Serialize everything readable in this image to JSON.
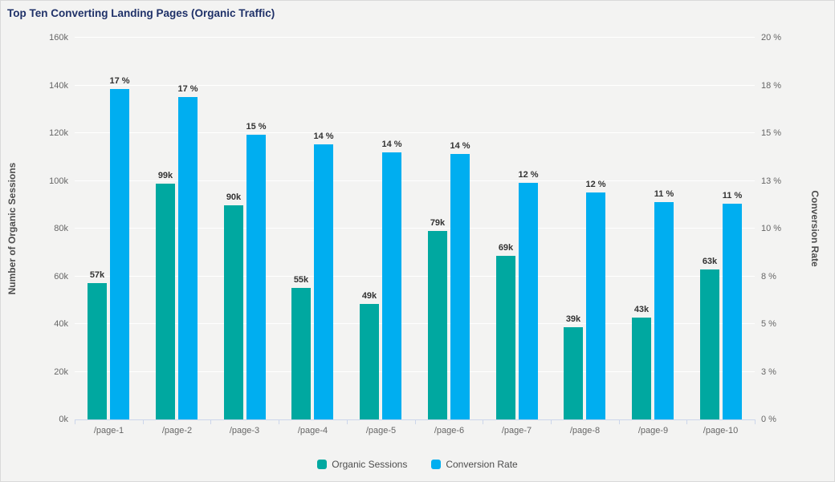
{
  "title": "Top Ten Converting Landing Pages (Organic Traffic)",
  "colors": {
    "teal": "#00a8a0",
    "blue": "#00aef0",
    "background": "#f3f3f2",
    "gridline": "#ffffff",
    "axis_line": "#ccd6eb",
    "tick_label": "#666666",
    "axis_title": "#4d4d4d",
    "data_label": "#333333",
    "title_text": "#1f3168"
  },
  "chart_data": {
    "type": "bar",
    "title": "Top Ten Converting Landing Pages (Organic Traffic)",
    "categories": [
      "/page-1",
      "/page-2",
      "/page-3",
      "/page-4",
      "/page-5",
      "/page-6",
      "/page-7",
      "/page-8",
      "/page-9",
      "/page-10"
    ],
    "series": [
      {
        "name": "Organic Sessions",
        "axis": "left",
        "unit": "thousand sessions",
        "color": "#00a8a0",
        "values": [
          57.2,
          98.9,
          89.8,
          55.1,
          48.5,
          79.0,
          68.6,
          38.8,
          42.8,
          62.9
        ],
        "labels": [
          "57k",
          "99k",
          "90k",
          "55k",
          "49k",
          "79k",
          "69k",
          "39k",
          "43k",
          "63k"
        ]
      },
      {
        "name": "Conversion Rate",
        "axis": "right",
        "unit": "percent",
        "color": "#00aef0",
        "values": [
          17.3,
          16.9,
          14.9,
          14.4,
          14.0,
          13.9,
          12.4,
          11.9,
          11.4,
          11.3
        ],
        "labels": [
          "17 %",
          "17 %",
          "15 %",
          "14 %",
          "14 %",
          "14 %",
          "12 %",
          "12 %",
          "11 %",
          "11 %"
        ]
      }
    ],
    "left_axis": {
      "title": "Number of Organic Sessions",
      "min": 0,
      "max": 160,
      "ticks_bottom_to_top": [
        "0k",
        "20k",
        "40k",
        "60k",
        "80k",
        "100k",
        "120k",
        "140k",
        "160k"
      ]
    },
    "right_axis": {
      "title": "Conversion Rate",
      "min": 0,
      "max": 20,
      "ticks_bottom_to_top": [
        "0 %",
        "3 %",
        "5 %",
        "8 %",
        "10 %",
        "13 %",
        "15 %",
        "18 %",
        "20 %"
      ]
    },
    "grid": true,
    "legend_position": "bottom",
    "legend": [
      "Organic Sessions",
      "Conversion Rate"
    ]
  }
}
